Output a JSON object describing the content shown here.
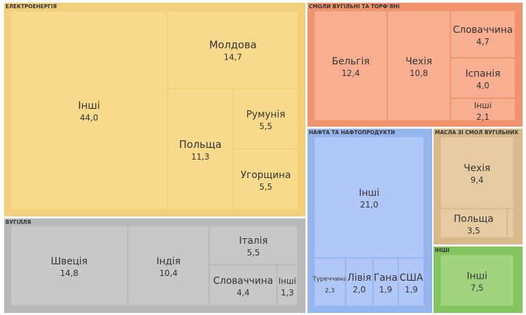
{
  "chart_data": {
    "type": "treemap",
    "groups": [
      {
        "name": "ЕЛЕКТРОЕНЕРГІЯ",
        "color": "#f2cf7a",
        "inner_color": "#f8da8c",
        "items": [
          {
            "name": "Інші",
            "value": "44,0"
          },
          {
            "name": "Молдова",
            "value": "14,7"
          },
          {
            "name": "Польща",
            "value": "11,3"
          },
          {
            "name": "Румунія",
            "value": "5,5"
          },
          {
            "name": "Угорщина",
            "value": "5,5"
          }
        ]
      },
      {
        "name": "СМОЛИ ВУГІЛЬНІ ТА ТОРФ'ЯНІ",
        "color": "#f1946e",
        "inner_color": "#f8ae90",
        "items": [
          {
            "name": "Бельгія",
            "value": "12,4"
          },
          {
            "name": "Чехія",
            "value": "10,8"
          },
          {
            "name": "Словаччина",
            "value": "4,7"
          },
          {
            "name": "Іспанія",
            "value": "4,0"
          },
          {
            "name": "Інші",
            "value": "2,1"
          }
        ]
      },
      {
        "name": "ВУГІЛЛЯ",
        "color": "#b9b9b9",
        "inner_color": "#c8c8c8",
        "items": [
          {
            "name": "Швеція",
            "value": "14,8"
          },
          {
            "name": "Індія",
            "value": "10,4"
          },
          {
            "name": "Італія",
            "value": "5,5"
          },
          {
            "name": "Словаччина",
            "value": "4,4"
          },
          {
            "name": "Інші",
            "value": "1,3"
          }
        ]
      },
      {
        "name": "НАФТА ТА НАФТОПРОДУКТИ",
        "color": "#95b5ef",
        "inner_color": "#b1c7f7",
        "items": [
          {
            "name": "Інші",
            "value": "21,0"
          },
          {
            "name": "Туреччина",
            "value": "2,3"
          },
          {
            "name": "Лівія",
            "value": "2,0"
          },
          {
            "name": "Гана",
            "value": "1,9"
          },
          {
            "name": "США",
            "value": "1,9"
          }
        ]
      },
      {
        "name": "МАСЛА ЗІ СМОЛ ВУГІЛЬНИХ",
        "color": "#d7b98a",
        "inner_color": "#e6cba3",
        "items": [
          {
            "name": "Чехія",
            "value": "9,4"
          },
          {
            "name": "Польща",
            "value": "3,5"
          },
          {
            "name": "",
            "value": ""
          }
        ]
      },
      {
        "name": "ІНШІ",
        "color": "#84c45e",
        "inner_color": "#a2d480",
        "items": [
          {
            "name": "Інші",
            "value": "7,5"
          }
        ]
      }
    ]
  }
}
